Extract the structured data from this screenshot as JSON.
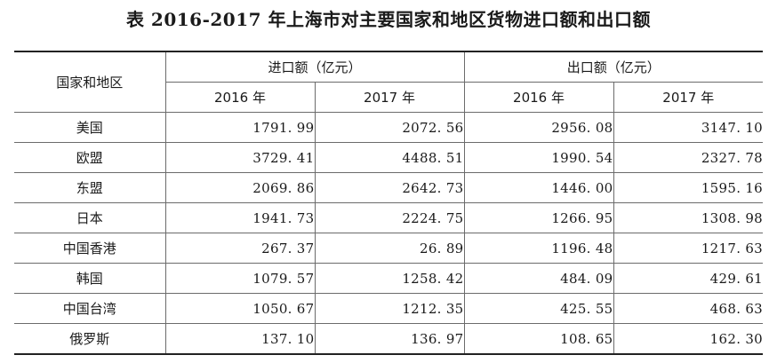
{
  "document": {
    "title": "表  2016-2017 年上海市对主要国家和地区货物进口额和出口额"
  },
  "table": {
    "header": {
      "region_col": "国家和地区",
      "groups": [
        {
          "label": "进口额（亿元）",
          "years": [
            "2016 年",
            "2017 年"
          ]
        },
        {
          "label": "出口额（亿元）",
          "years": [
            "2016 年",
            "2017 年"
          ]
        }
      ]
    },
    "rows": [
      {
        "region": "美国",
        "import_2016": "1791. 99",
        "import_2017": "2072. 56",
        "export_2016": "2956. 08",
        "export_2017": "3147. 10"
      },
      {
        "region": "欧盟",
        "import_2016": "3729. 41",
        "import_2017": "4488. 51",
        "export_2016": "1990. 54",
        "export_2017": "2327. 78"
      },
      {
        "region": "东盟",
        "import_2016": "2069. 86",
        "import_2017": "2642. 73",
        "export_2016": "1446. 00",
        "export_2017": "1595. 16"
      },
      {
        "region": "日本",
        "import_2016": "1941. 73",
        "import_2017": "2224. 75",
        "export_2016": "1266. 95",
        "export_2017": "1308. 98"
      },
      {
        "region": "中国香港",
        "import_2016": "267. 37",
        "import_2017": "26. 89",
        "export_2016": "1196. 48",
        "export_2017": "1217. 63"
      },
      {
        "region": "韩国",
        "import_2016": "1079. 57",
        "import_2017": "1258. 42",
        "export_2016": "484. 09",
        "export_2017": "429. 61"
      },
      {
        "region": "中国台湾",
        "import_2016": "1050. 67",
        "import_2017": "1212. 35",
        "export_2016": "425. 55",
        "export_2017": "468. 63"
      },
      {
        "region": "俄罗斯",
        "import_2016": "137. 10",
        "import_2017": "136. 97",
        "export_2016": "108. 65",
        "export_2017": "162. 30"
      }
    ]
  }
}
